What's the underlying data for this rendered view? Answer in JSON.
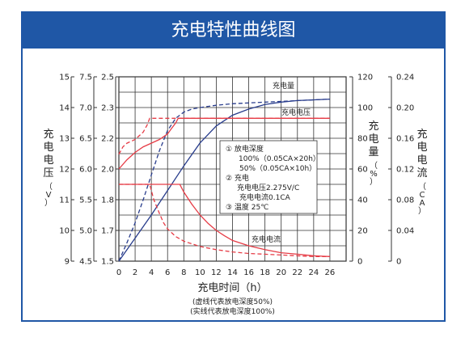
{
  "chart_data": {
    "type": "line",
    "title": "充电特性曲线图",
    "xlabel": "充电时间（h）",
    "x_ticks": [
      0,
      2,
      4,
      6,
      8,
      10,
      12,
      14,
      16,
      18,
      20,
      22,
      24,
      26
    ],
    "xlim": [
      0,
      28
    ],
    "notes": [
      "(虚线代表放电深度50%)",
      "(实线代表放电深度100%)"
    ],
    "left_axes": [
      {
        "ticks": [
          "15",
          "14",
          "13",
          "12",
          "11",
          "10",
          "9"
        ]
      },
      {
        "ticks": [
          "7.5",
          "7.0",
          "6.5",
          "6.0",
          "5.5",
          "5.0",
          "4.5"
        ]
      },
      {
        "label": "充电电压（V）",
        "ticks": [
          "2.5",
          "2.3",
          "2.2",
          "2.0",
          "1.8",
          "1.7",
          "1.5"
        ],
        "ylim": [
          1.5,
          2.5
        ]
      }
    ],
    "right_axes": [
      {
        "label": "充电量（%）",
        "ticks": [
          "120",
          "100",
          "80",
          "60",
          "40",
          "20",
          "0"
        ],
        "ylim": [
          0,
          120
        ]
      },
      {
        "label": "充电电流（CA）",
        "ticks": [
          "0.24",
          "0.20",
          "0.16",
          "0.12",
          "0.08",
          "0.04",
          "0"
        ],
        "ylim": [
          0,
          0.24
        ]
      }
    ],
    "legend": [
      "① 放电深度",
      "100%（0.05CA×20h）",
      "50%（0.05CA×10h）",
      "② 充电",
      "充电电压2.275V/C",
      "充电电流0.1CA",
      "③ 温度 25℃"
    ],
    "series": [
      {
        "name": "充电量",
        "axis": "capacity",
        "style": "solid",
        "color": "#283c8c",
        "x": [
          0,
          2,
          4,
          6,
          8,
          10,
          12,
          14,
          16,
          18,
          20,
          22,
          24,
          26
        ],
        "values": [
          0,
          15,
          30,
          46,
          62,
          77,
          88,
          95,
          99,
          102,
          103.5,
          104.5,
          105,
          105.5
        ]
      },
      {
        "name": "充电量",
        "axis": "capacity",
        "style": "dashed",
        "color": "#283c8c",
        "x": [
          0,
          1,
          2,
          3,
          4,
          5,
          6,
          7,
          8,
          9,
          10,
          12,
          14,
          16,
          18,
          20,
          22,
          24,
          26
        ],
        "values": [
          0,
          12,
          25,
          40,
          56,
          72,
          85,
          93,
          97,
          99,
          100,
          101.5,
          102.5,
          103,
          103.5,
          104,
          104.5,
          105,
          105.5
        ]
      },
      {
        "name": "充电电压",
        "axis": "voltage",
        "style": "solid",
        "color": "#e63c46",
        "x": [
          0,
          1,
          2,
          3,
          4,
          5,
          6,
          6.5,
          7,
          7.3,
          7.3,
          10,
          14,
          20,
          26
        ],
        "values": [
          2.0,
          2.05,
          2.09,
          2.12,
          2.14,
          2.16,
          2.19,
          2.22,
          2.25,
          2.275,
          2.275,
          2.275,
          2.275,
          2.275,
          2.275
        ]
      },
      {
        "name": "充电电压",
        "axis": "voltage",
        "style": "dashed",
        "color": "#e63c46",
        "x": [
          0,
          0.5,
          1,
          2,
          3,
          3.5,
          3.8,
          3.8,
          6,
          10,
          14,
          20,
          26
        ],
        "values": [
          2.08,
          2.12,
          2.14,
          2.16,
          2.2,
          2.24,
          2.275,
          2.275,
          2.275,
          2.275,
          2.275,
          2.275,
          2.275
        ]
      },
      {
        "name": "充电电流",
        "axis": "current",
        "style": "solid",
        "color": "#e63c46",
        "x": [
          0,
          7.5,
          7.5,
          8,
          9,
          10,
          11,
          12,
          13,
          14,
          16,
          18,
          20,
          22,
          24,
          26
        ],
        "values": [
          0.1,
          0.1,
          0.1,
          0.09,
          0.074,
          0.06,
          0.049,
          0.04,
          0.033,
          0.027,
          0.02,
          0.015,
          0.011,
          0.009,
          0.007,
          0.006
        ]
      },
      {
        "name": "充电电流",
        "axis": "current",
        "style": "dashed",
        "color": "#e63c46",
        "x": [
          0,
          3.8,
          3.8,
          4.3,
          5,
          5.5,
          6,
          7,
          8,
          10,
          12,
          14,
          16,
          18,
          20,
          22,
          24,
          26
        ],
        "values": [
          0.1,
          0.1,
          0.1,
          0.08,
          0.062,
          0.05,
          0.042,
          0.032,
          0.026,
          0.019,
          0.015,
          0.012,
          0.01,
          0.009,
          0.008,
          0.007,
          0.006,
          0.006
        ]
      }
    ],
    "series_labels": [
      "充电量",
      "充电电压",
      "充电电流"
    ],
    "colors": {
      "banner": "#1f57a6",
      "capacity": "#283c8c",
      "voltage": "#e63c46",
      "current": "#e63c46",
      "grid": "#333333"
    }
  }
}
